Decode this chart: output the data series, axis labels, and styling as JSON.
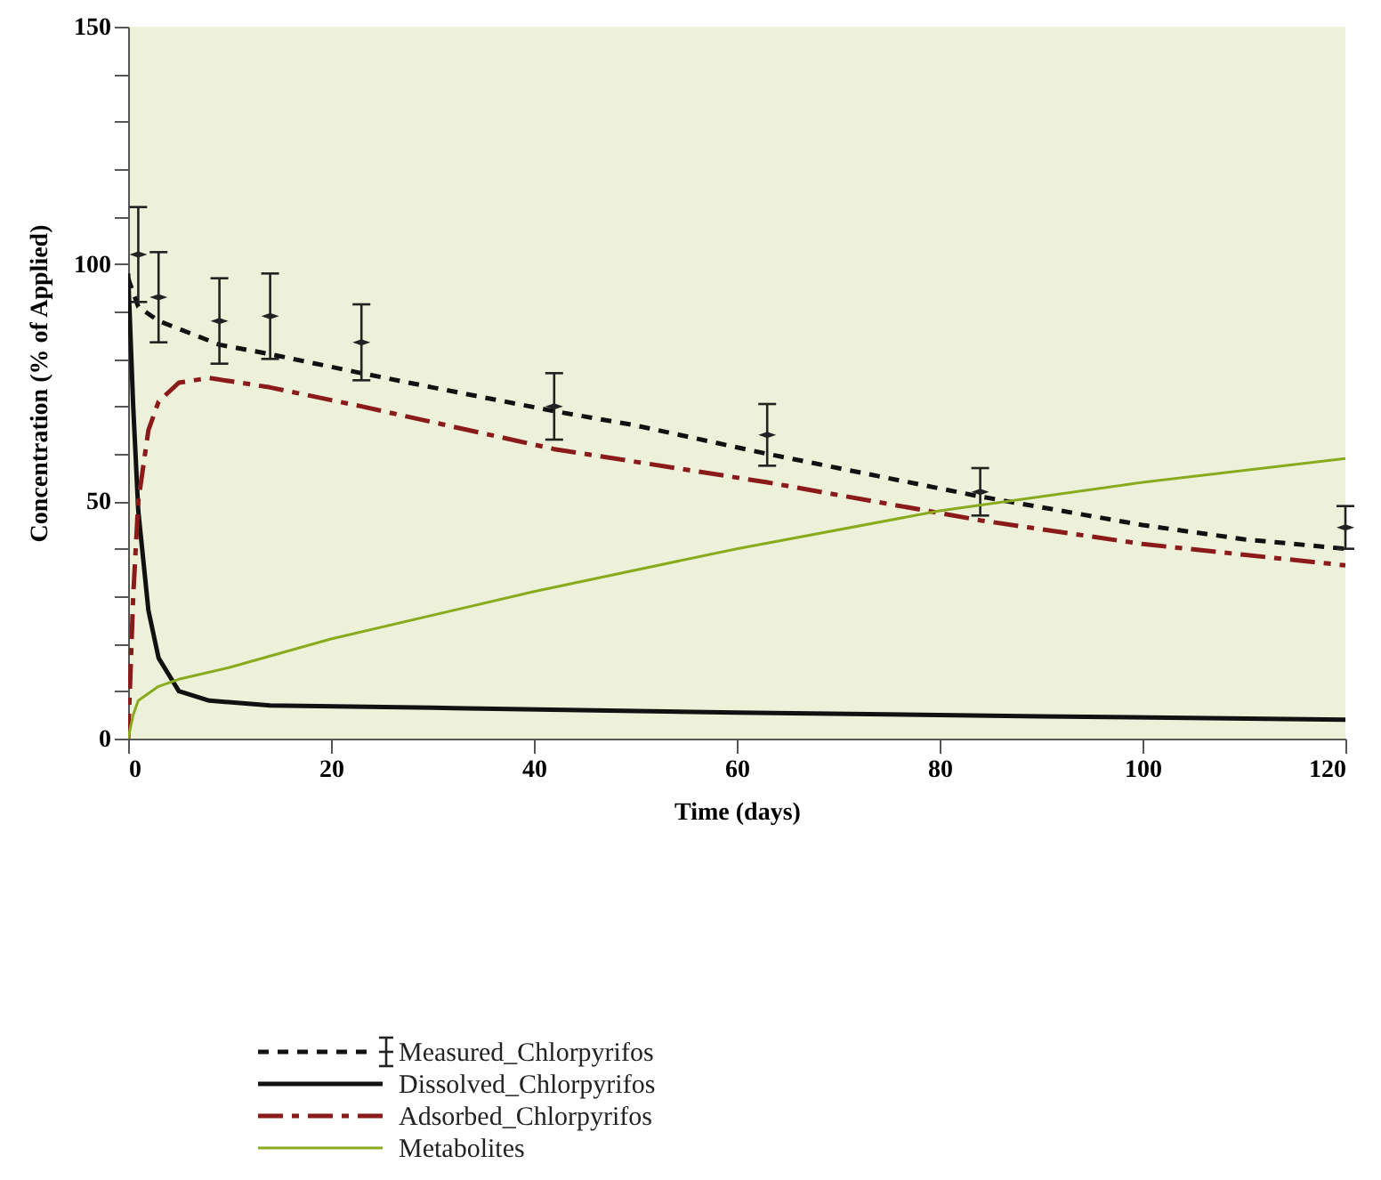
{
  "chart_data": {
    "type": "line",
    "xlabel": "Time (days)",
    "ylabel": "Concentration (% of Applied)",
    "xlim": [
      0,
      120
    ],
    "xticks": [
      0,
      20,
      40,
      60,
      80,
      100,
      120
    ],
    "ylim": [
      0,
      150
    ],
    "yticks": [
      0,
      {
        "value": 10,
        "label": null
      },
      {
        "value": 20,
        "label": null
      },
      {
        "value": 30,
        "label": null
      },
      {
        "value": 40,
        "label": null
      },
      50,
      {
        "value": 60,
        "label": null
      },
      {
        "value": 70,
        "label": null
      },
      {
        "value": 80,
        "label": null
      },
      {
        "value": 90,
        "label": null
      },
      100,
      {
        "value": 110,
        "label": null
      },
      {
        "value": 120,
        "label": null
      },
      {
        "value": 130,
        "label": null
      },
      {
        "value": 140,
        "label": null
      },
      150
    ],
    "grid": false,
    "legend": "bottom left",
    "series": [
      {
        "color": "#111111",
        "line_style": "dashed",
        "x": [
          0,
          1,
          3,
          9,
          14,
          23,
          30,
          42,
          50,
          63,
          70,
          84,
          100,
          110,
          120
        ],
        "values": [
          97,
          91,
          88,
          83,
          81,
          77,
          74,
          69,
          66,
          60,
          57,
          51,
          45,
          42,
          40
        ]
      },
      {
        "name": "Measured_Chlorpyrifos",
        "type": "scatter",
        "marker": "diamond",
        "color": "#222222",
        "x": [
          1,
          3,
          9,
          14,
          23,
          42,
          63,
          84,
          120
        ],
        "values": [
          102,
          93,
          88,
          89,
          83.5,
          70,
          64,
          52,
          44.5
        ],
        "errors": [
          10,
          9.5,
          9,
          9,
          8,
          7,
          6.5,
          5,
          4.5
        ]
      },
      {
        "name": "Dissolved_Chlorpyrifos",
        "color": "#111111",
        "line_style": "solid",
        "x": [
          0,
          0.5,
          1,
          2,
          3,
          5,
          8,
          14,
          30,
          60,
          90,
          120
        ],
        "values": [
          98,
          70,
          48,
          27,
          17,
          10,
          8,
          7,
          6.5,
          5.5,
          4.7,
          4
        ]
      },
      {
        "name": "Adsorbed_Chlorpyrifos",
        "color": "#8b1a1a",
        "line_style": "dashed",
        "x": [
          0,
          0.5,
          1,
          2,
          3,
          5,
          8,
          14,
          23,
          42,
          63,
          84,
          100,
          120
        ],
        "values": [
          0,
          30,
          50,
          65,
          71,
          75,
          76,
          74,
          70,
          61,
          54,
          46,
          41,
          36.5
        ]
      },
      {
        "name": "Metabolites",
        "color": "#8aaa1e",
        "line_style": "solid",
        "x": [
          0,
          0.5,
          1,
          3,
          5,
          10,
          20,
          40,
          60,
          80,
          100,
          120
        ],
        "values": [
          0,
          5,
          8,
          11,
          12.5,
          15,
          21,
          31,
          40,
          48,
          54,
          59
        ]
      }
    ]
  }
}
